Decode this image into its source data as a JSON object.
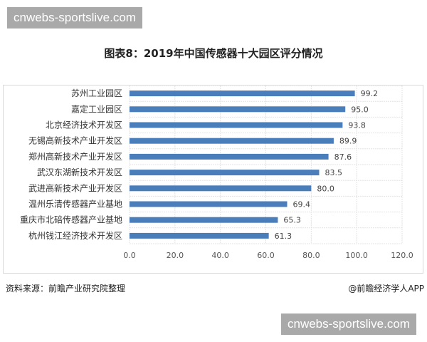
{
  "watermark": "cnwebs-sportslive.com",
  "chart_data": {
    "type": "bar",
    "orientation": "horizontal",
    "title": "图表8：2019年中国传感器十大园区评分情况",
    "categories": [
      "苏州工业园区",
      "嘉定工业园区",
      "北京经济技术开发区",
      "无锡高新技术产业开发区",
      "郑州高新技术产业开发区",
      "武汉东湖新技术开发区",
      "武进高新技术产业开发区",
      "温州乐清传感器产业基地",
      "重庆市北碚传感器产业基地",
      "杭州钱江经济技术开发区"
    ],
    "values": [
      99.2,
      95.0,
      93.8,
      89.9,
      87.6,
      83.5,
      80.0,
      69.4,
      65.3,
      61.3
    ],
    "xlim": [
      0,
      120
    ],
    "xticks": [
      "0.0",
      "20.0",
      "40.0",
      "60.0",
      "80.0",
      "100.0",
      "120.0"
    ],
    "grid": true,
    "bar_color": "#4a7ebb"
  },
  "footer": {
    "source": "资料来源：前瞻产业研究院整理",
    "credit": "@前瞻经济学人APP"
  }
}
